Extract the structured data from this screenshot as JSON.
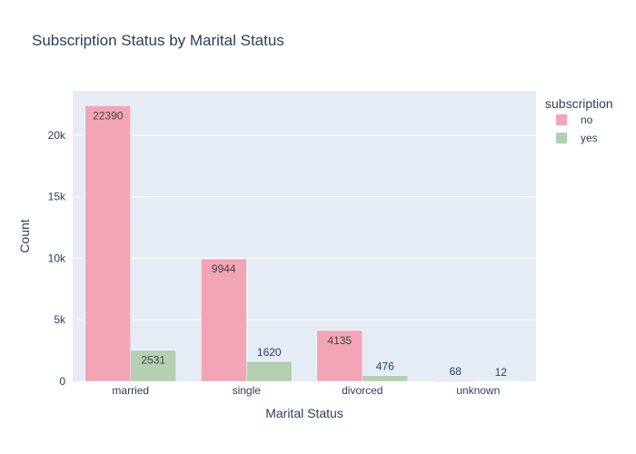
{
  "chart_data": {
    "type": "bar",
    "title": "Subscription Status by Marital Status",
    "xlabel": "Marital Status",
    "ylabel": "Count",
    "categories": [
      "married",
      "single",
      "divorced",
      "unknown"
    ],
    "series": [
      {
        "name": "no",
        "values": [
          22390,
          9944,
          4135,
          68
        ],
        "color": "#f2a5b6"
      },
      {
        "name": "yes",
        "values": [
          2531,
          1620,
          476,
          12
        ],
        "color": "#b4cfb1"
      }
    ],
    "ylim": [
      0,
      23600
    ],
    "yticks": [
      0,
      5000,
      10000,
      15000,
      20000
    ],
    "ytick_labels": [
      "0",
      "5k",
      "10k",
      "15k",
      "20k"
    ],
    "legend": {
      "title": "subscription",
      "position": "top-right"
    },
    "grid": true,
    "colors": {
      "plot_bg": "#e5ecf6",
      "grid": "#ffffff",
      "text": "#2a3f5f"
    }
  }
}
